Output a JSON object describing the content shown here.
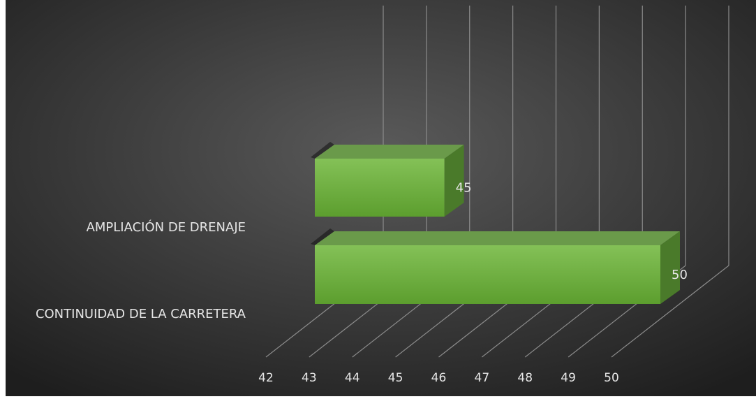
{
  "chart_data": {
    "type": "bar",
    "orientation": "horizontal",
    "style": "3d",
    "categories": [
      "AMPLIACIÓN DE DRENAJE",
      "CONTINUIDAD DE LA CARRETERA"
    ],
    "values": [
      45,
      50
    ],
    "data_labels": [
      "45",
      "50"
    ],
    "x_ticks": [
      "42",
      "43",
      "44",
      "45",
      "46",
      "47",
      "48",
      "49",
      "50"
    ],
    "xlim": [
      42,
      50
    ],
    "grid": true,
    "legend": "none",
    "colors": {
      "background_center": "#5a5a5a",
      "background_edge": "#1e1e1e",
      "bar_front_top": "#84c157",
      "bar_front_bottom": "#5c9e2e",
      "bar_top": "#6a9a4a",
      "bar_side": "#4a7a2a",
      "gridline": "#8c8c8c",
      "text": "#e6e6e6"
    }
  }
}
